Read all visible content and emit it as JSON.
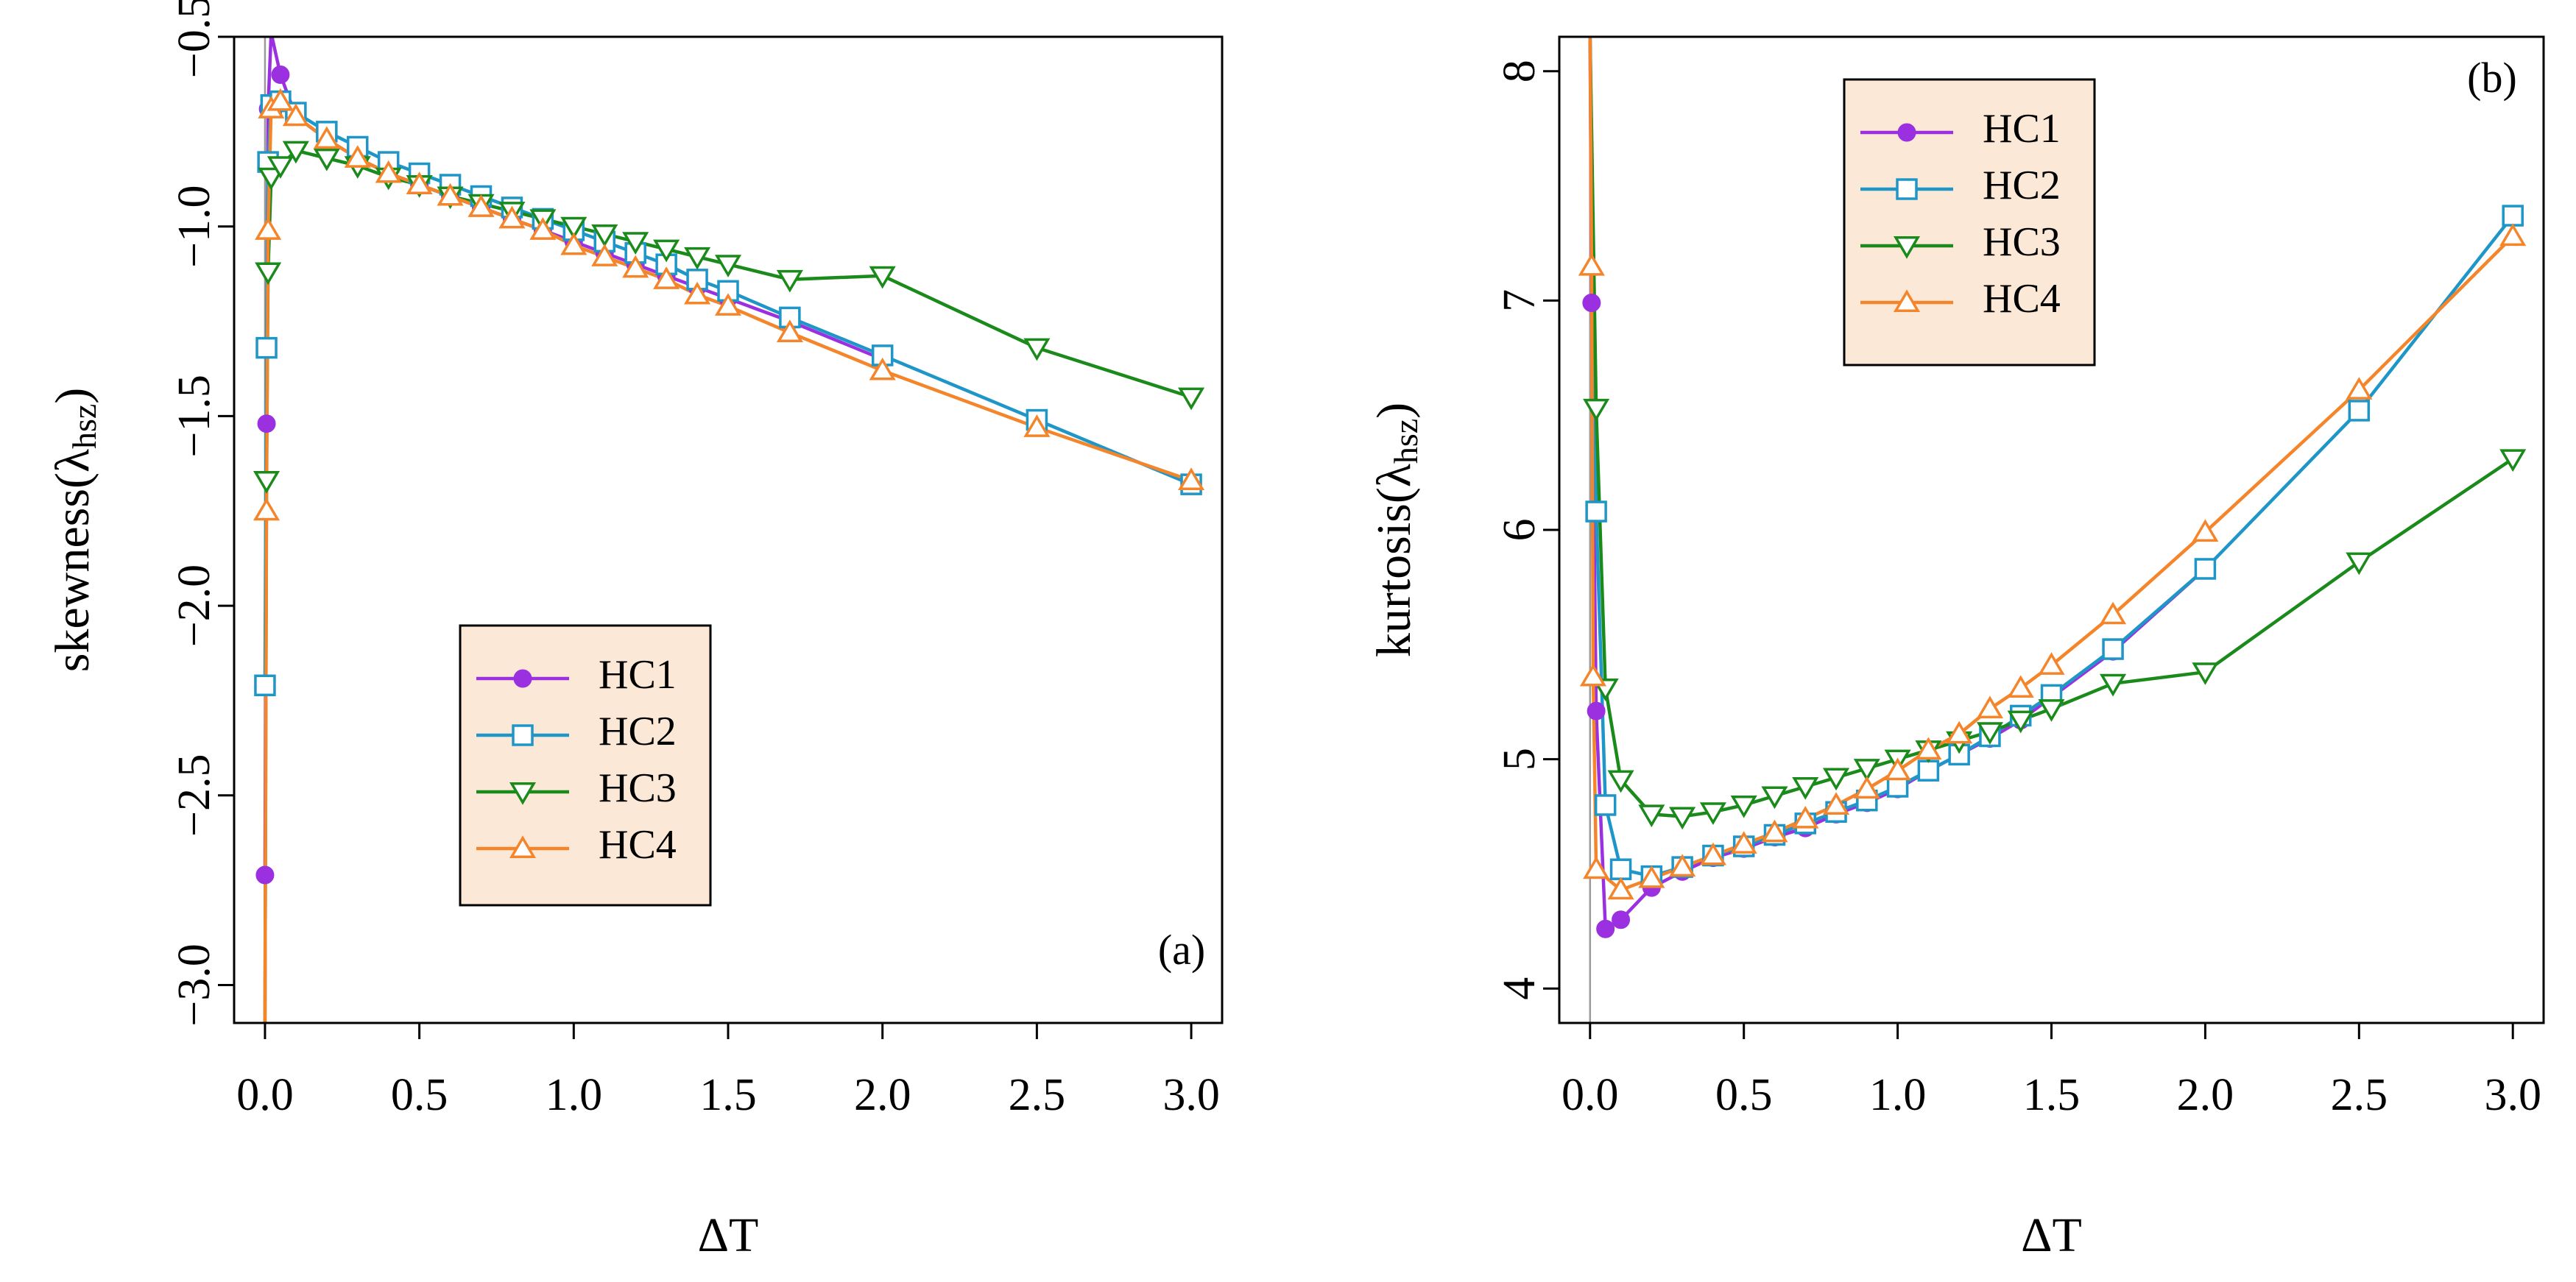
{
  "chart_data": [
    {
      "type": "line",
      "panel_label": "(a)",
      "xlabel": "ΔT",
      "ylabel_main": "skewness(λ",
      "ylabel_sub": "hsz",
      "ylabel_close": ")",
      "xlim": [
        -0.1,
        3.1
      ],
      "ylim": [
        -3.1,
        -0.5
      ],
      "xticks": [
        0.0,
        0.5,
        1.0,
        1.5,
        2.0,
        2.5,
        3.0
      ],
      "xtick_labels": [
        "0.0",
        "0.5",
        "1.0",
        "1.5",
        "2.0",
        "2.5",
        "3.0"
      ],
      "yticks": [
        -3.0,
        -2.5,
        -2.0,
        -1.5,
        -1.0,
        -0.5
      ],
      "ytick_labels": [
        "−3.0",
        "−2.5",
        "−2.0",
        "−1.5",
        "−1.0",
        "−0.5"
      ],
      "legend_position": "bottom-left",
      "series": [
        {
          "name": "HC1",
          "color": "#9b30e0",
          "marker": "circle",
          "x": [
            0.0,
            0.005,
            0.01,
            0.02,
            0.05,
            0.1,
            0.2,
            0.3,
            0.4,
            0.5,
            0.6,
            0.7,
            0.8,
            0.9,
            1.0,
            1.1,
            1.2,
            1.3,
            1.4,
            1.5,
            1.7,
            2.0
          ],
          "y": [
            -2.71,
            -1.52,
            -0.69,
            -0.49,
            -0.6,
            -0.71,
            -0.77,
            -0.82,
            -0.86,
            -0.89,
            -0.92,
            -0.95,
            -0.98,
            -1.01,
            -1.04,
            -1.07,
            -1.1,
            -1.13,
            -1.16,
            -1.19,
            -1.25,
            -1.35
          ]
        },
        {
          "name": "HC2",
          "color": "#1f96c8",
          "marker": "square",
          "x": [
            0.0,
            0.005,
            0.01,
            0.02,
            0.05,
            0.1,
            0.2,
            0.3,
            0.4,
            0.5,
            0.6,
            0.7,
            0.8,
            0.9,
            1.0,
            1.1,
            1.2,
            1.3,
            1.4,
            1.5,
            1.7,
            2.0,
            2.5,
            3.0
          ],
          "y": [
            -2.21,
            -1.32,
            -0.83,
            -0.68,
            -0.67,
            -0.7,
            -0.75,
            -0.79,
            -0.83,
            -0.86,
            -0.89,
            -0.92,
            -0.95,
            -0.98,
            -1.01,
            -1.04,
            -1.07,
            -1.1,
            -1.14,
            -1.17,
            -1.24,
            -1.34,
            -1.51,
            -1.68
          ]
        },
        {
          "name": "HC3",
          "color": "#1a8a1a",
          "marker": "triangle-down",
          "x": [
            0.0,
            0.005,
            0.01,
            0.02,
            0.05,
            0.1,
            0.2,
            0.3,
            0.4,
            0.5,
            0.6,
            0.7,
            0.8,
            0.9,
            1.0,
            1.1,
            1.2,
            1.3,
            1.4,
            1.5,
            1.7,
            2.0,
            2.5,
            3.0
          ],
          "y": [
            -3.1,
            -1.67,
            -1.12,
            -0.87,
            -0.84,
            -0.8,
            -0.82,
            -0.84,
            -0.87,
            -0.89,
            -0.92,
            -0.94,
            -0.96,
            -0.98,
            -1.0,
            -1.02,
            -1.04,
            -1.06,
            -1.08,
            -1.1,
            -1.14,
            -1.13,
            -1.32,
            -1.45
          ]
        },
        {
          "name": "HC4",
          "color": "#f4852a",
          "marker": "triangle-up",
          "x": [
            0.0,
            0.005,
            0.01,
            0.02,
            0.05,
            0.1,
            0.2,
            0.3,
            0.4,
            0.5,
            0.6,
            0.7,
            0.8,
            0.9,
            1.0,
            1.1,
            1.2,
            1.3,
            1.4,
            1.5,
            1.7,
            2.0,
            2.5,
            3.0
          ],
          "y": [
            -3.1,
            -1.75,
            -1.01,
            -0.69,
            -0.67,
            -0.71,
            -0.77,
            -0.82,
            -0.86,
            -0.89,
            -0.92,
            -0.95,
            -0.98,
            -1.01,
            -1.05,
            -1.08,
            -1.11,
            -1.14,
            -1.18,
            -1.21,
            -1.28,
            -1.38,
            -1.53,
            -1.67
          ]
        }
      ]
    },
    {
      "type": "line",
      "panel_label": "(b)",
      "xlabel": "ΔT",
      "ylabel_main": "kurtosis(λ",
      "ylabel_sub": "hsz",
      "ylabel_close": ")",
      "xlim": [
        -0.1,
        3.1
      ],
      "ylim": [
        3.85,
        8.15
      ],
      "xticks": [
        0.0,
        0.5,
        1.0,
        1.5,
        2.0,
        2.5,
        3.0
      ],
      "xtick_labels": [
        "0.0",
        "0.5",
        "1.0",
        "1.5",
        "2.0",
        "2.5",
        "3.0"
      ],
      "yticks": [
        4,
        5,
        6,
        7,
        8
      ],
      "ytick_labels": [
        "4",
        "5",
        "6",
        "7",
        "8"
      ],
      "legend_position": "top-left",
      "series": [
        {
          "name": "HC1",
          "color": "#9b30e0",
          "marker": "circle",
          "x": [
            0.0,
            0.005,
            0.02,
            0.05,
            0.1,
            0.2,
            0.3,
            0.4,
            0.5,
            0.6,
            0.7,
            0.8,
            0.9,
            1.0,
            1.1,
            1.2,
            1.3,
            1.4,
            1.5,
            1.7,
            2.0
          ],
          "y": [
            8.15,
            6.99,
            5.21,
            4.26,
            4.3,
            4.44,
            4.51,
            4.57,
            4.61,
            4.66,
            4.7,
            4.76,
            4.81,
            4.87,
            4.95,
            5.02,
            5.09,
            5.17,
            5.27,
            5.47,
            5.83
          ]
        },
        {
          "name": "HC2",
          "color": "#1f96c8",
          "marker": "square",
          "x": [
            0.0,
            0.02,
            0.05,
            0.1,
            0.2,
            0.3,
            0.4,
            0.5,
            0.6,
            0.7,
            0.8,
            0.9,
            1.0,
            1.1,
            1.2,
            1.3,
            1.4,
            1.5,
            1.7,
            2.0,
            2.5,
            3.0
          ],
          "y": [
            8.15,
            6.08,
            4.8,
            4.52,
            4.49,
            4.53,
            4.58,
            4.62,
            4.67,
            4.72,
            4.77,
            4.82,
            4.88,
            4.95,
            5.02,
            5.1,
            5.19,
            5.28,
            5.48,
            5.83,
            6.52,
            7.37
          ]
        },
        {
          "name": "HC3",
          "color": "#1a8a1a",
          "marker": "triangle-down",
          "x": [
            0.0,
            0.02,
            0.05,
            0.1,
            0.2,
            0.3,
            0.4,
            0.5,
            0.6,
            0.7,
            0.8,
            0.9,
            1.0,
            1.1,
            1.2,
            1.3,
            1.4,
            1.5,
            1.7,
            2.0,
            2.5,
            3.0
          ],
          "y": [
            8.15,
            6.53,
            5.31,
            4.91,
            4.76,
            4.75,
            4.77,
            4.8,
            4.84,
            4.88,
            4.92,
            4.96,
            5.0,
            5.04,
            5.08,
            5.12,
            5.17,
            5.22,
            5.33,
            5.38,
            5.86,
            6.31
          ]
        },
        {
          "name": "HC4",
          "color": "#f4852a",
          "marker": "triangle-up",
          "x": [
            0.0,
            0.005,
            0.01,
            0.02,
            0.1,
            0.2,
            0.3,
            0.4,
            0.5,
            0.6,
            0.7,
            0.8,
            0.9,
            1.0,
            1.1,
            1.2,
            1.3,
            1.4,
            1.5,
            1.7,
            2.0,
            2.5,
            3.0
          ],
          "y": [
            8.15,
            7.15,
            5.36,
            4.52,
            4.43,
            4.48,
            4.53,
            4.58,
            4.63,
            4.68,
            4.74,
            4.8,
            4.87,
            4.95,
            5.04,
            5.11,
            5.22,
            5.31,
            5.41,
            5.63,
            5.99,
            6.61,
            7.28
          ]
        }
      ]
    }
  ]
}
